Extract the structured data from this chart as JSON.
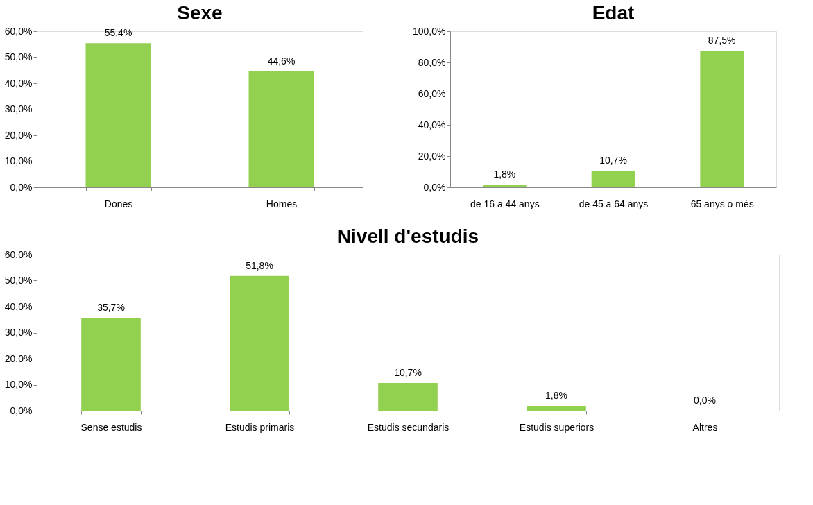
{
  "chart_data": [
    {
      "type": "bar",
      "title": "Sexe",
      "categories": [
        "Dones",
        "Homes"
      ],
      "values": [
        55.4,
        44.6
      ],
      "color": "#92d050",
      "value_labels": [
        "55,4%",
        "44,6%"
      ],
      "ylim": [
        0,
        60
      ],
      "yticks": [
        {
          "value": 0,
          "label": "0,0%"
        },
        {
          "value": 10,
          "label": "10,0%"
        },
        {
          "value": 20,
          "label": "20,0%"
        },
        {
          "value": 30,
          "label": "30,0%"
        },
        {
          "value": 40,
          "label": "40,0%"
        },
        {
          "value": 50,
          "label": "50,0%"
        },
        {
          "value": 60,
          "label": "60,0%"
        }
      ],
      "grid": false
    },
    {
      "type": "bar",
      "title": "Edat",
      "categories": [
        "de 16 a 44 anys",
        "de 45 a 64 anys",
        "65 anys o més"
      ],
      "values": [
        1.8,
        10.7,
        87.5
      ],
      "color": "#92d050",
      "value_labels": [
        "1,8%",
        "10,7%",
        "87,5%"
      ],
      "ylim": [
        0,
        100
      ],
      "yticks": [
        {
          "value": 0,
          "label": "0,0%"
        },
        {
          "value": 20,
          "label": "20,0%"
        },
        {
          "value": 40,
          "label": "40,0%"
        },
        {
          "value": 60,
          "label": "60,0%"
        },
        {
          "value": 80,
          "label": "80,0%"
        },
        {
          "value": 100,
          "label": "100,0%"
        }
      ],
      "grid": false
    },
    {
      "type": "bar",
      "title": "Nivell d'estudis",
      "categories": [
        "Sense estudis",
        "Estudis primaris",
        "Estudis secundaris",
        "Estudis superiors",
        "Altres"
      ],
      "values": [
        35.7,
        51.8,
        10.7,
        1.8,
        0.0
      ],
      "color": "#92d050",
      "value_labels": [
        "35,7%",
        "51,8%",
        "10,7%",
        "1,8%",
        "0,0%"
      ],
      "ylim": [
        0,
        60
      ],
      "yticks": [
        {
          "value": 0,
          "label": "0,0%"
        },
        {
          "value": 10,
          "label": "10,0%"
        },
        {
          "value": 20,
          "label": "20,0%"
        },
        {
          "value": 30,
          "label": "30,0%"
        },
        {
          "value": 40,
          "label": "40,0%"
        },
        {
          "value": 50,
          "label": "50,0%"
        },
        {
          "value": 60,
          "label": "60,0%"
        }
      ],
      "grid": false
    }
  ]
}
